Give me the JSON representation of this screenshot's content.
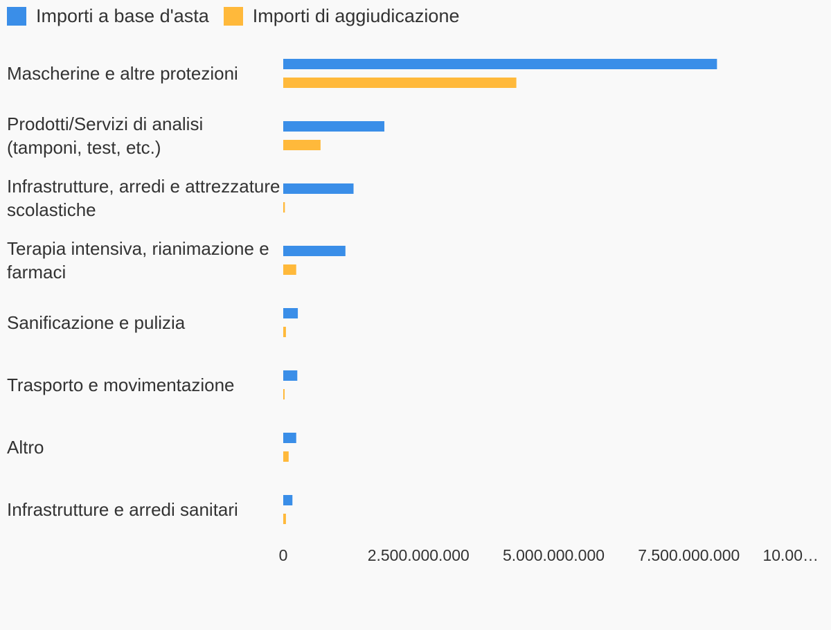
{
  "chart_data": {
    "type": "bar",
    "orientation": "horizontal",
    "categories": [
      "Mascherine e altre protezioni",
      "Prodotti/Servizi di analisi (tamponi, test, etc.)",
      "Infrastrutture, arredi e attrezzature scolastiche",
      "Terapia intensiva, rianimazione e farmaci",
      "Sanificazione e pulizia",
      "Trasporto e movimentazione",
      "Altro",
      "Infrastrutture e arredi sanitari"
    ],
    "series": [
      {
        "name": "Importi a base d'asta",
        "color": "#3a8ee8",
        "values": [
          8020000000,
          1870000000,
          1300000000,
          1150000000,
          270000000,
          260000000,
          240000000,
          170000000
        ]
      },
      {
        "name": "Importi di aggiudicazione",
        "color": "#ffb93b",
        "values": [
          4310000000,
          690000000,
          30000000,
          240000000,
          50000000,
          20000000,
          100000000,
          50000000
        ]
      }
    ],
    "xlim": [
      0,
      10000000000
    ],
    "xticks": [
      0,
      {
        "value": 2500000000,
        "label": "2.500.000.000"
      },
      {
        "value": 5000000000,
        "label": "5.000.000.000"
      },
      {
        "value": 7500000000,
        "label": "7.500.000.000"
      },
      {
        "value": 10000000000,
        "label": "10.00…"
      }
    ],
    "legend": "top-left"
  }
}
